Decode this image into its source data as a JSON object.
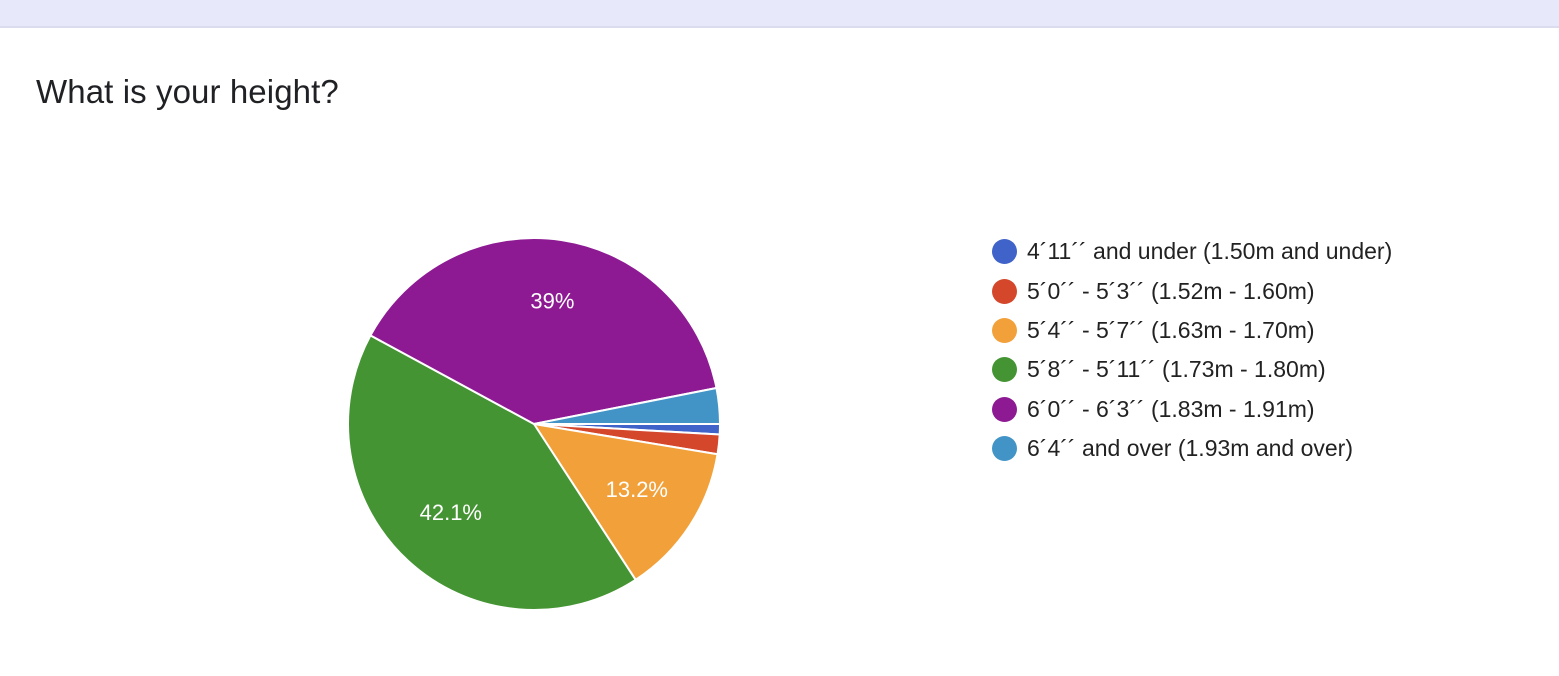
{
  "question": {
    "title": "What is your height?"
  },
  "chart_data": {
    "type": "pie",
    "title": "What is your height?",
    "slice_border_color": "#ffffff",
    "slices": [
      {
        "name": "4´11´´ and under (1.50m and under)",
        "value": 0.9,
        "label": "",
        "color": "#3f63c9"
      },
      {
        "name": "5´0´´ - 5´3´´ (1.52m - 1.60m)",
        "value": 1.7,
        "label": "",
        "color": "#d4472b"
      },
      {
        "name": "5´4´´ - 5´7´´ (1.63m - 1.70m)",
        "value": 13.2,
        "label": "13.2%",
        "color": "#f2a13a"
      },
      {
        "name": "5´8´´ - 5´11´´ (1.73m - 1.80m)",
        "value": 42.1,
        "label": "42.1%",
        "color": "#459433"
      },
      {
        "name": "6´0´´ - 6´3´´ (1.83m - 1.91m)",
        "value": 39,
        "label": "39%",
        "color": "#8d1a93"
      },
      {
        "name": "6´4´´ and over (1.93m and over)",
        "value": 3.1,
        "label": "",
        "color": "#4394c6"
      }
    ],
    "legend_position": "right"
  }
}
